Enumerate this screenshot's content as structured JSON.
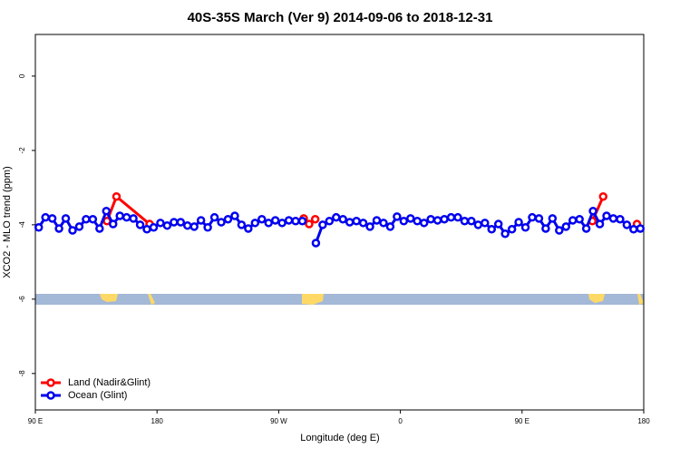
{
  "chart_data": {
    "type": "line",
    "title": "40S-35S March (Ver 9)   2014-09-06 to 2018-12-31",
    "x_label": "Longitude (deg E)",
    "y_label": "XCO2 - MLO trend (ppm)",
    "xlim": [
      90,
      540
    ],
    "ylim": [
      -8.98,
      1.12
    ],
    "xticks": [
      {
        "value": 90,
        "label": "90 E"
      },
      {
        "value": 180,
        "label": "180"
      },
      {
        "value": 270,
        "label": "90 W"
      },
      {
        "value": 360,
        "label": "0"
      },
      {
        "value": 450,
        "label": "90 E"
      },
      {
        "value": 540,
        "label": "180"
      }
    ],
    "yticks": [
      0,
      -2,
      -4,
      -6,
      -8
    ],
    "legend": "bottom-left",
    "series": [
      {
        "name": "Land (Nadir&Glint)",
        "color": "#ff0000",
        "x": [
          143,
          150,
          174.5,
          null,
          288.5,
          292.5,
          297,
          null,
          502,
          510,
          null,
          535
        ],
        "values": [
          -3.9,
          -3.24,
          -3.98,
          null,
          -3.83,
          -3.98,
          -3.85,
          null,
          -3.9,
          -3.24,
          null,
          -3.98
        ]
      },
      {
        "name": "Ocean (Glint)",
        "color": "#0000ee",
        "x": [
          92.5,
          97.5,
          102.5,
          107.5,
          112.5,
          117.5,
          122.5,
          127.5,
          132.5,
          137.5,
          142.5,
          147.5,
          152.5,
          157.5,
          162.5,
          167.5,
          172.5,
          177.5,
          182.5,
          187.5,
          192.5,
          197.5,
          202.5,
          207.5,
          212.5,
          217.5,
          222.5,
          227.5,
          232.5,
          237.5,
          242.5,
          247.5,
          252.5,
          257.5,
          262.5,
          267.5,
          272.5,
          277.5,
          282.5,
          287.5,
          null,
          297.5,
          302.5,
          307.5,
          312.5,
          317.5,
          322.5,
          327.5,
          332.5,
          337.5,
          342.5,
          347.5,
          352.5,
          357.5,
          362.5,
          367.5,
          372.5,
          377.5,
          382.5,
          387.5,
          392.5,
          397.5,
          402.5,
          407.5,
          412.5,
          417.5,
          422.5,
          427.5,
          432.5,
          437.5,
          442.5,
          447.5,
          452.5,
          457.5,
          462.5,
          467.5,
          472.5,
          477.5,
          482.5,
          487.5,
          492.5,
          497.5,
          502.5,
          507.5,
          512.5,
          517.5,
          522.5,
          527.5,
          532.5,
          537.5
        ],
        "values": [
          -4.07,
          -3.8,
          -3.83,
          -4.1,
          -3.83,
          -4.15,
          -4.05,
          -3.85,
          -3.85,
          -4.1,
          -3.63,
          -3.98,
          -3.76,
          -3.8,
          -3.83,
          -4.0,
          -4.12,
          -4.07,
          -3.95,
          -4.02,
          -3.93,
          -3.93,
          -4.02,
          -4.05,
          -3.88,
          -4.07,
          -3.8,
          -3.93,
          -3.85,
          -3.76,
          -4.0,
          -4.1,
          -3.95,
          -3.85,
          -3.95,
          -3.88,
          -3.95,
          -3.88,
          -3.9,
          -3.9,
          null,
          -4.49,
          -4.0,
          -3.9,
          -3.8,
          -3.85,
          -3.93,
          -3.9,
          -3.95,
          -4.05,
          -3.88,
          -3.95,
          -4.05,
          -3.78,
          -3.9,
          -3.83,
          -3.9,
          -3.95,
          -3.85,
          -3.88,
          -3.85,
          -3.8,
          -3.8,
          -3.9,
          -3.9,
          -4.0,
          -3.95,
          -4.12,
          -3.98,
          -4.24,
          -4.12,
          -3.93,
          -4.07,
          -3.8,
          -3.83,
          -4.1,
          -3.83,
          -4.15,
          -4.05,
          -3.88,
          -3.85,
          -4.1,
          -3.63,
          -3.98,
          -3.76,
          -3.83,
          -3.85,
          -4.0,
          -4.12,
          -4.1
        ]
      }
    ]
  }
}
